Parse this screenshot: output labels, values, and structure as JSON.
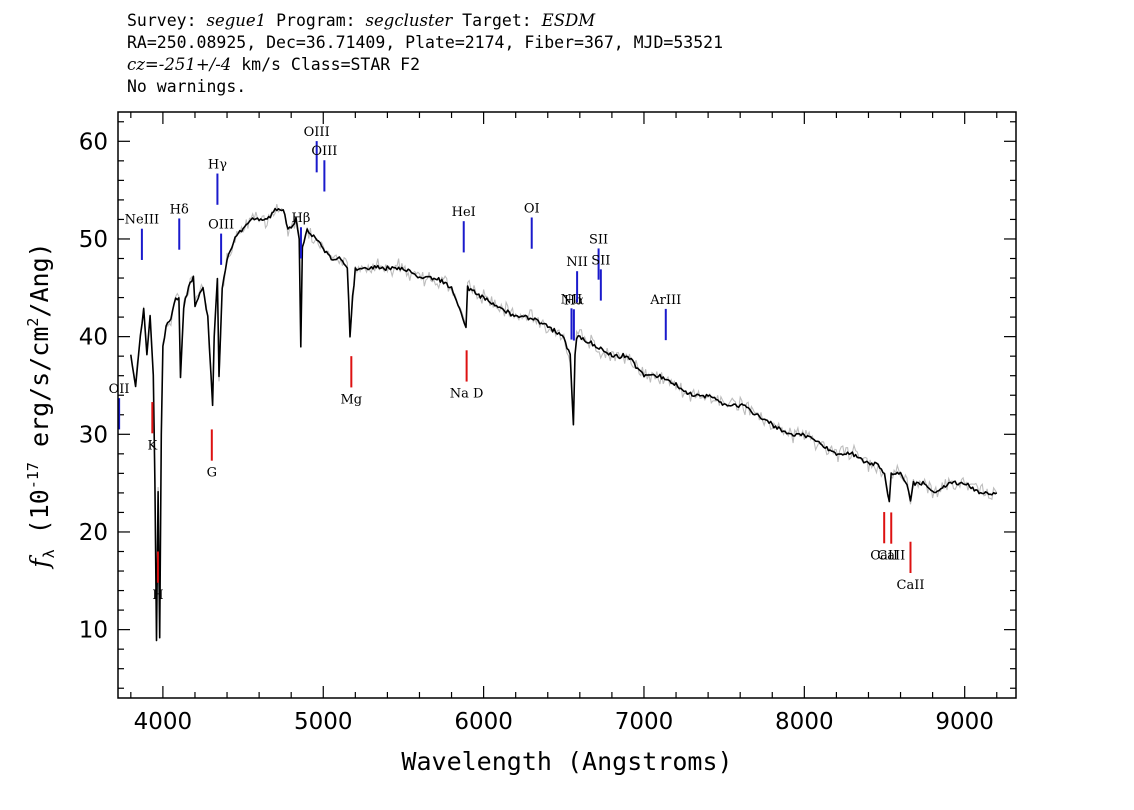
{
  "header": {
    "survey_label": "Survey:",
    "survey": "segue1",
    "program_label": "Program:",
    "program": "segcluster",
    "target_label": "Target:",
    "target": "ESDM",
    "line2": "RA=250.08925, Dec=36.71409, Plate=2174, Fiber=367, MJD=53521",
    "cz_prefix": "cz=",
    "cz_value": "-251+/-4",
    "cz_suffix": " km/s Class=STAR F2",
    "line4": "No warnings."
  },
  "chart_data": {
    "type": "line",
    "xlabel": "Wavelength (Angstroms)",
    "ylabel_parts": [
      "f",
      "λ",
      " (10",
      "-17",
      " erg/s/cm",
      "2",
      "/Ang)"
    ],
    "xlim": [
      3720,
      9320
    ],
    "ylim": [
      3,
      63
    ],
    "xticks": [
      4000,
      5000,
      6000,
      7000,
      8000,
      9000
    ],
    "yticks": [
      10,
      20,
      30,
      40,
      50,
      60
    ],
    "series": [
      {
        "color": "#000000",
        "x": [
          3800,
          3830,
          3860,
          3880,
          3900,
          3920,
          3940,
          3950,
          3960,
          3970,
          3980,
          3990,
          4000,
          4020,
          4050,
          4080,
          4100,
          4110,
          4130,
          4160,
          4190,
          4200,
          4220,
          4250,
          4280,
          4300,
          4310,
          4320,
          4340,
          4350,
          4370,
          4400,
          4450,
          4500,
          4550,
          4600,
          4650,
          4700,
          4750,
          4780,
          4800,
          4830,
          4850,
          4860,
          4870,
          4900,
          4950,
          5000,
          5050,
          5100,
          5150,
          5167,
          5183,
          5200,
          5300,
          5400,
          5500,
          5600,
          5700,
          5800,
          5890,
          5900,
          6000,
          6100,
          6200,
          6300,
          6400,
          6500,
          6540,
          6560,
          6570,
          6580,
          6600,
          6700,
          6800,
          6900,
          7000,
          7100,
          7200,
          7300,
          7400,
          7500,
          7600,
          7700,
          7800,
          7900,
          8000,
          8100,
          8200,
          8300,
          8400,
          8450,
          8500,
          8530,
          8542,
          8560,
          8600,
          8640,
          8662,
          8680,
          8750,
          8800,
          8900,
          9000,
          9100,
          9200
        ],
        "y": [
          38,
          35,
          40,
          43,
          38,
          42,
          36,
          25,
          9,
          24,
          9,
          30,
          39,
          41,
          42,
          44,
          44,
          36,
          43,
          45,
          46,
          43,
          44,
          45,
          42,
          36,
          33,
          40,
          46,
          36,
          45,
          48,
          50,
          51,
          52,
          52,
          52,
          53,
          53,
          51,
          51,
          52,
          50,
          39,
          49,
          51,
          50,
          49,
          48,
          48,
          47,
          40,
          44,
          47,
          47,
          47,
          47,
          46,
          46,
          45,
          41,
          45,
          44,
          43,
          42,
          42,
          41,
          40,
          38,
          31,
          38,
          40,
          40,
          39,
          38,
          38,
          36,
          36,
          35,
          34,
          34,
          33,
          33,
          32,
          31,
          30,
          30,
          29,
          28,
          28,
          27,
          27,
          26,
          23,
          26,
          26,
          26,
          25,
          23,
          25,
          25,
          24,
          25,
          25,
          24,
          24
        ]
      }
    ],
    "emission_lines": [
      {
        "label": "NeIII",
        "x": 3869
      },
      {
        "label": "OII",
        "x": 3727
      },
      {
        "label": "Hδ",
        "x": 4102
      },
      {
        "label": "Hγ",
        "x": 4340
      },
      {
        "label": "OIII",
        "x": 4363
      },
      {
        "label": "Hβ",
        "x": 4861
      },
      {
        "label": "OIII",
        "x": 4959
      },
      {
        "label": "OIII",
        "x": 5007
      },
      {
        "label": "HeI",
        "x": 5876
      },
      {
        "label": "OI",
        "x": 6300
      },
      {
        "label": "NII",
        "x": 6548
      },
      {
        "label": "Hα",
        "x": 6563
      },
      {
        "label": "NII",
        "x": 6583
      },
      {
        "label": "SII",
        "x": 6717
      },
      {
        "label": "SII",
        "x": 6731
      },
      {
        "label": "ArIII",
        "x": 7136
      }
    ],
    "absorption_lines": [
      {
        "label": "K",
        "x": 3934
      },
      {
        "label": "H",
        "x": 3969
      },
      {
        "label": "G",
        "x": 4305
      },
      {
        "label": "Mg",
        "x": 5175
      },
      {
        "label": "Na D",
        "x": 5894
      },
      {
        "label": "CaII",
        "x": 8498
      },
      {
        "label": "CaII",
        "x": 8542
      },
      {
        "label": "CaII",
        "x": 8662
      }
    ]
  }
}
